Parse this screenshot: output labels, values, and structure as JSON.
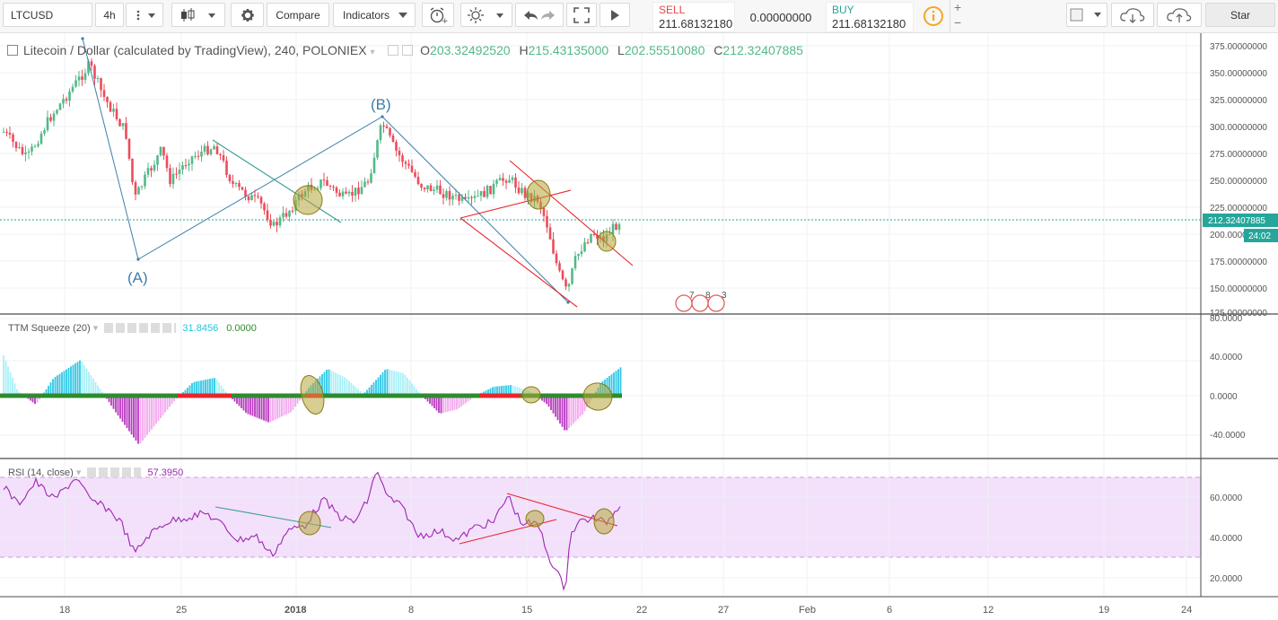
{
  "toolbar": {
    "symbol": "LTCUSD",
    "interval": "4h",
    "compare_label": "Compare",
    "indicators_label": "Indicators",
    "sell_label": "SELL",
    "sell_price": "211.68132180",
    "spread": "0.00000000",
    "buy_label": "BUY",
    "buy_price": "211.68132180",
    "plus": "+",
    "minus": "−",
    "star_label": "Star"
  },
  "main_legend": {
    "title": "Litecoin / Dollar (calculated by TradingView), 240, POLONIEX",
    "open_label": "O",
    "open": "203.32492520",
    "high_label": "H",
    "high": "215.43135000",
    "low_label": "L",
    "low": "202.55510080",
    "close_label": "C",
    "close": "212.32407885"
  },
  "price_axis": {
    "ticks": [
      "375.00000000",
      "350.00000000",
      "325.00000000",
      "300.00000000",
      "275.00000000",
      "250.00000000",
      "225.00000000",
      "200.00000000",
      "175.00000000",
      "150.00000000",
      "125.00000000"
    ],
    "last_price": "212.32407885",
    "countdown": "24:02"
  },
  "wave_labels": {
    "a": "(A)",
    "b": "(B)"
  },
  "events": [
    "7",
    "8",
    "3"
  ],
  "ttm": {
    "label": "TTM Squeeze (20)",
    "value1": "31.8456",
    "value2": "0.0000",
    "ticks": [
      "80.0000",
      "40.0000",
      "0.0000",
      "-40.0000"
    ]
  },
  "rsi": {
    "label": "RSI (14, close)",
    "value": "57.3950",
    "ticks": [
      "60.0000",
      "40.0000",
      "20.0000"
    ]
  },
  "date_axis": [
    "18",
    "25",
    "2018",
    "8",
    "15",
    "22",
    "27",
    "Feb",
    "6",
    "12",
    "19",
    "24"
  ],
  "colors": {
    "up": "#53b987",
    "down": "#eb4d5c",
    "price_line": "#26a69a",
    "rsi_line": "#9c27b0",
    "rsi_band": "#f3e0fb",
    "annot_blue": "#3f7ea6",
    "annot_red": "#e8262b"
  }
}
